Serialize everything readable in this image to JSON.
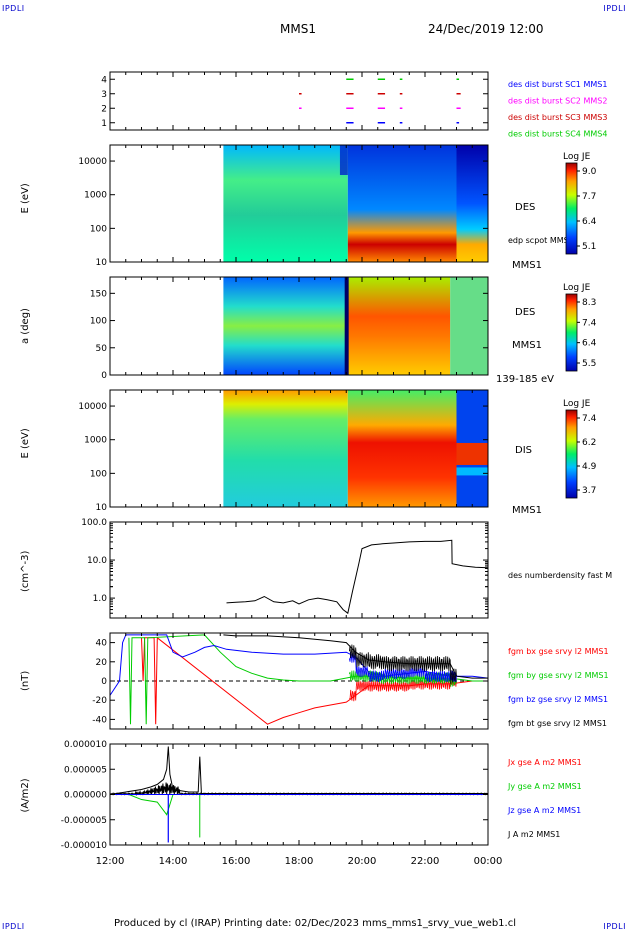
{
  "header": {
    "corner_tl": "IPDLI",
    "corner_tr": "IPDLI",
    "corner_bl": "IPDLI",
    "corner_br": "IPDLI",
    "title": "MMS1",
    "datetime": "24/Dec/2019 12:00"
  },
  "footer": {
    "text": "Produced by cl (IRAP)   Printing date: 02/Dec/2023   mms_mms1_srvy_vue_web1.cl"
  },
  "colors": {
    "red": "#ff0000",
    "green": "#00cc00",
    "blue": "#0000ff",
    "magenta": "#ff00ff",
    "black": "#000000"
  },
  "chart_data": [
    {
      "id": "burst",
      "type": "scatter",
      "yticks": [
        "1",
        "2",
        "3",
        "4"
      ],
      "ylim": [
        0.5,
        4.5
      ],
      "series": [
        {
          "name": "des dist burst SC1 MMS1",
          "color": "#0000ff",
          "row": 1,
          "segments": [
            [
              19.5,
              19.7
            ],
            [
              20.5,
              20.7
            ],
            [
              21.2,
              21.25
            ],
            [
              23.0,
              23.05
            ]
          ]
        },
        {
          "name": "des dist burst SC2 MMS2",
          "color": "#ff00ff",
          "row": 2,
          "segments": [
            [
              18.0,
              18.05
            ],
            [
              19.5,
              19.7
            ],
            [
              20.5,
              20.7
            ],
            [
              21.2,
              21.25
            ],
            [
              23.0,
              23.1
            ]
          ]
        },
        {
          "name": "des dist burst SC3 MMS3",
          "color": "#cc0000",
          "row": 3,
          "segments": [
            [
              18.0,
              18.05
            ],
            [
              19.5,
              19.7
            ],
            [
              20.5,
              20.7
            ],
            [
              21.2,
              21.25
            ],
            [
              23.0,
              23.1
            ]
          ]
        },
        {
          "name": "des dist burst SC4 MMS4",
          "color": "#00cc00",
          "row": 4,
          "segments": [
            [
              19.5,
              19.7
            ],
            [
              20.5,
              20.7
            ],
            [
              21.2,
              21.25
            ],
            [
              23.0,
              23.05
            ]
          ]
        }
      ]
    },
    {
      "id": "des_energy",
      "type": "heatmap",
      "ylabel": "E (eV)",
      "yticks": [
        "10",
        "100",
        "1000",
        "10000"
      ],
      "right_label": "DES",
      "right_label2": "edp scpot MMS1",
      "right_label3": "MMS1",
      "colorbar": {
        "title": "Log JE",
        "ticks": [
          "9.0",
          "7.7",
          "6.4",
          "5.1"
        ],
        "range": [
          5.1,
          9.0
        ]
      }
    },
    {
      "id": "des_pitch",
      "type": "heatmap",
      "ylabel": "a (deg)",
      "yticks": [
        "0",
        "50",
        "100",
        "150"
      ],
      "right_label": "DES",
      "right_label2": "MMS1",
      "right_label3": "139-185 eV",
      "colorbar": {
        "title": "Log JE",
        "ticks": [
          "8.3",
          "7.4",
          "6.4",
          "5.5"
        ],
        "range": [
          5.5,
          8.3
        ]
      }
    },
    {
      "id": "dis_energy",
      "type": "heatmap",
      "ylabel": "E (eV)",
      "yticks": [
        "10",
        "100",
        "1000",
        "10000"
      ],
      "right_label": "DIS",
      "right_label3": "MMS1",
      "colorbar": {
        "title": "Log JE",
        "ticks": [
          "7.4",
          "6.2",
          "4.9",
          "3.7"
        ],
        "range": [
          3.7,
          7.4
        ]
      }
    },
    {
      "id": "density",
      "type": "line",
      "ylabel": "(cm^-3)",
      "yticks": [
        "1.0",
        "10.0",
        "100.0"
      ],
      "ylim": [
        0.3,
        100
      ],
      "scale": "log",
      "series": [
        {
          "name": "des numberdensity fast M",
          "color": "#000000",
          "x": [
            15.7,
            16.0,
            16.3,
            16.6,
            16.9,
            17.2,
            17.5,
            17.8,
            18.0,
            18.3,
            18.6,
            18.9,
            19.2,
            19.4,
            19.55,
            19.7,
            19.8,
            19.9,
            20.0,
            20.3,
            20.7,
            21.0,
            21.5,
            22.0,
            22.5,
            22.85,
            22.86,
            23.2,
            23.6,
            24.0
          ],
          "y": [
            0.75,
            0.78,
            0.8,
            0.85,
            1.1,
            0.8,
            0.75,
            0.85,
            0.7,
            0.9,
            1.0,
            0.9,
            0.8,
            0.5,
            0.4,
            1.5,
            3.5,
            8.0,
            20,
            25,
            27,
            28,
            30,
            31,
            31,
            33,
            8.0,
            7.0,
            6.5,
            6.3
          ]
        }
      ]
    },
    {
      "id": "bfield",
      "type": "line",
      "ylabel": "(nT)",
      "yticks": [
        "-40",
        "-20",
        "0",
        "20",
        "40"
      ],
      "ylim": [
        -50,
        50
      ],
      "series": [
        {
          "name": "fgm bx gse srvy l2 MMS1",
          "color": "#ff0000",
          "x": [
            13.0,
            13.05,
            13.1,
            13.4,
            13.45,
            13.5,
            17.0,
            17.5,
            18.0,
            18.5,
            19.0,
            19.5,
            19.8,
            20.2,
            20.7,
            21.5,
            22.0,
            22.8,
            23.5,
            24.0
          ],
          "y": [
            45,
            0,
            45,
            45,
            -45,
            45,
            -45,
            -38,
            -33,
            -28,
            -25,
            -22,
            -15,
            -5,
            -5,
            -5,
            -3,
            -3,
            0,
            0
          ]
        },
        {
          "name": "fgm by gse srvy l2 MMS1",
          "color": "#00cc00",
          "x": [
            12.6,
            12.65,
            12.7,
            13.1,
            13.15,
            13.2,
            15.0,
            15.5,
            16.0,
            16.5,
            17.0,
            17.5,
            18.0,
            19.0,
            19.8,
            20.5,
            21.5,
            22.8,
            23.5,
            24.0
          ],
          "y": [
            45,
            -45,
            45,
            45,
            -45,
            45,
            48,
            30,
            15,
            8,
            3,
            1,
            0,
            0,
            5,
            5,
            3,
            3,
            0,
            0
          ]
        },
        {
          "name": "fgm bz gse srvy l2 MMS1",
          "color": "#0000ff",
          "x": [
            12.0,
            12.3,
            12.4,
            12.5,
            13.8,
            14.0,
            14.3,
            14.7,
            15.0,
            15.3,
            15.7,
            16.5,
            17.5,
            18.5,
            19.5,
            19.8,
            20.2,
            20.7,
            21.5,
            22.0,
            22.8,
            23.5,
            24.0
          ],
          "y": [
            -15,
            0,
            40,
            48,
            48,
            30,
            25,
            30,
            35,
            37,
            33,
            30,
            28,
            28,
            30,
            25,
            10,
            5,
            8,
            10,
            5,
            5,
            3
          ]
        },
        {
          "name": "fgm bt gse srvy l2 MMS1",
          "color": "#000000",
          "x": [
            15.6,
            16.0,
            17.0,
            18.0,
            19.0,
            19.5,
            19.8,
            20.2,
            20.7,
            21.5,
            22.0,
            22.8,
            23.0,
            23.5,
            24.0
          ],
          "y": [
            48,
            47,
            47,
            45,
            42,
            40,
            30,
            22,
            20,
            18,
            18,
            18,
            5,
            3,
            3
          ]
        }
      ]
    },
    {
      "id": "current",
      "type": "line",
      "ylabel": "(A/m2)",
      "yticks": [
        "-0.000010",
        "-0.000005",
        "0.000000",
        "0.000005",
        "0.000010"
      ],
      "ylim": [
        -1e-05,
        1e-05
      ],
      "series": [
        {
          "name": "Jx gse A m2 MMS1",
          "color": "#ff0000"
        },
        {
          "name": "Jy gse A m2 MMS1",
          "color": "#00cc00"
        },
        {
          "name": "Jz gse A m2 MMS1",
          "color": "#0000ff"
        },
        {
          "name": "J A m2 MMS1",
          "color": "#000000",
          "x": [
            12.0,
            12.5,
            13.0,
            13.3,
            13.5,
            13.7,
            13.8,
            13.85,
            13.9,
            14.0,
            14.5,
            14.8,
            14.85,
            14.9,
            15.0,
            18.0,
            21.0,
            24.0
          ],
          "y": [
            0.0,
            5e-07,
            1e-06,
            1.5e-06,
            2e-06,
            3e-06,
            5e-06,
            9.5e-06,
            4e-06,
            1e-06,
            5e-07,
            5e-07,
            7.5e-06,
            2e-07,
            2e-07,
            2e-07,
            2e-07,
            2e-07
          ]
        }
      ]
    }
  ],
  "xaxis": {
    "ticks": [
      "12:00",
      "14:00",
      "16:00",
      "18:00",
      "20:00",
      "22:00",
      "00:00"
    ],
    "hours": [
      12,
      14,
      16,
      18,
      20,
      22,
      24
    ],
    "range": [
      12,
      24
    ]
  }
}
